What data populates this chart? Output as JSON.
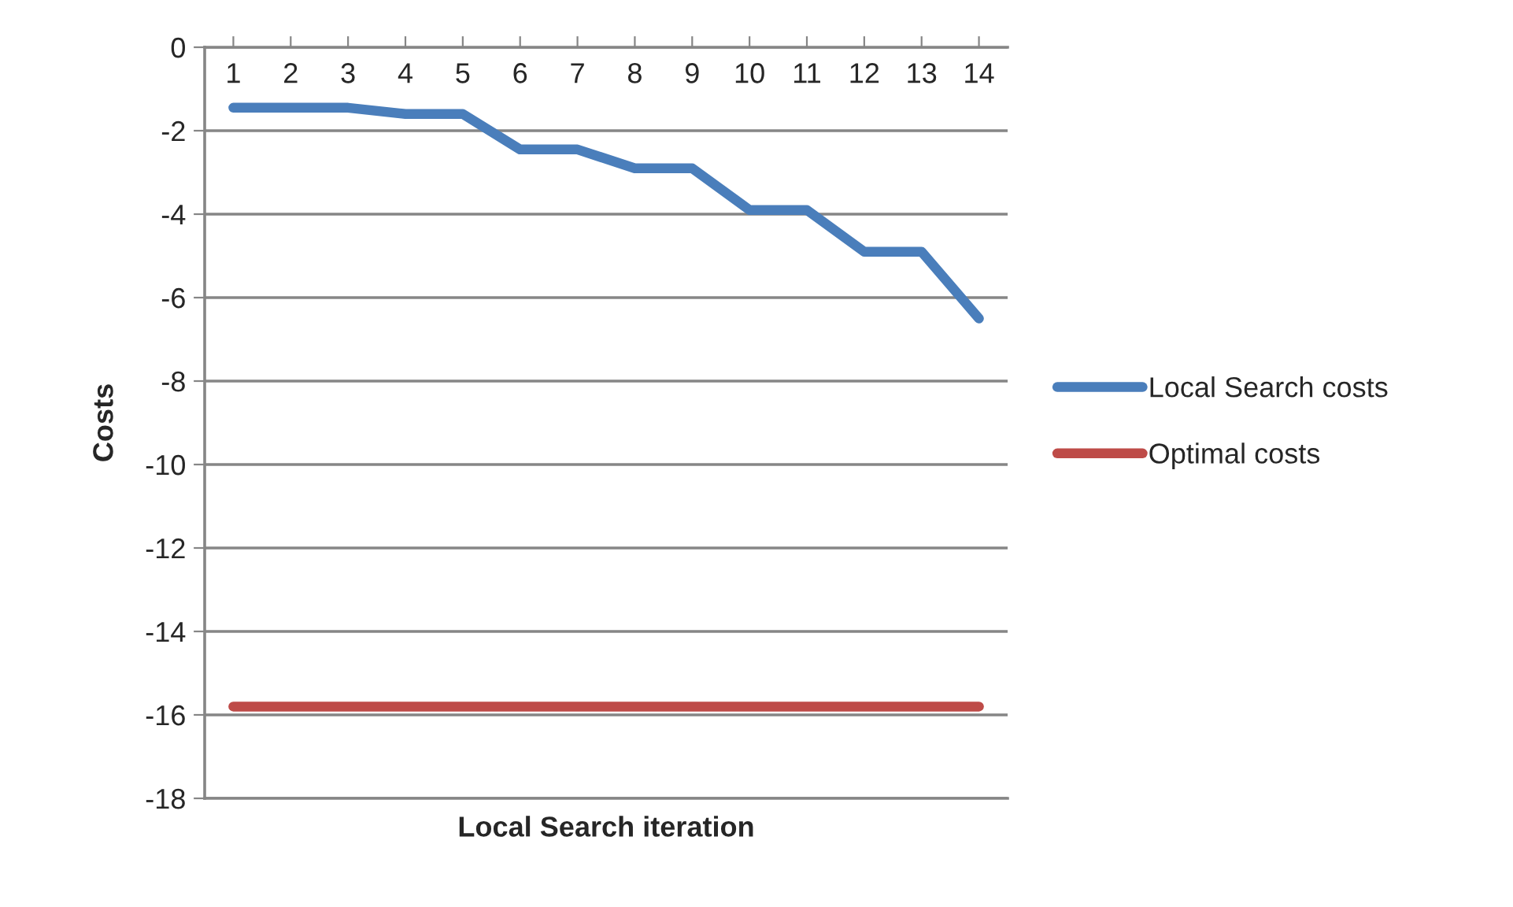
{
  "chart_data": {
    "type": "line",
    "xlabel": "Local Search iteration",
    "ylabel": "Costs",
    "categories": [
      "1",
      "2",
      "3",
      "4",
      "5",
      "6",
      "7",
      "8",
      "9",
      "10",
      "11",
      "12",
      "13",
      "14"
    ],
    "series": [
      {
        "name": "Local Search costs",
        "color": "#4a7ebb",
        "values": [
          -1.45,
          -1.45,
          -1.45,
          -1.6,
          -1.6,
          -2.45,
          -2.45,
          -2.9,
          -2.9,
          -3.9,
          -3.9,
          -4.9,
          -4.9,
          -6.5
        ]
      },
      {
        "name": "Optimal costs",
        "color": "#be4b48",
        "values": [
          -15.8,
          -15.8,
          -15.8,
          -15.8,
          -15.8,
          -15.8,
          -15.8,
          -15.8,
          -15.8,
          -15.8,
          -15.8,
          -15.8,
          -15.8,
          -15.8
        ]
      }
    ],
    "ylim": [
      -18,
      0
    ],
    "yticks": [
      -18,
      -16,
      -14,
      -12,
      -10,
      -8,
      -6,
      -4,
      -2,
      0
    ],
    "grid": "y",
    "legend": "right",
    "marker": "none",
    "line_style": "solid"
  }
}
